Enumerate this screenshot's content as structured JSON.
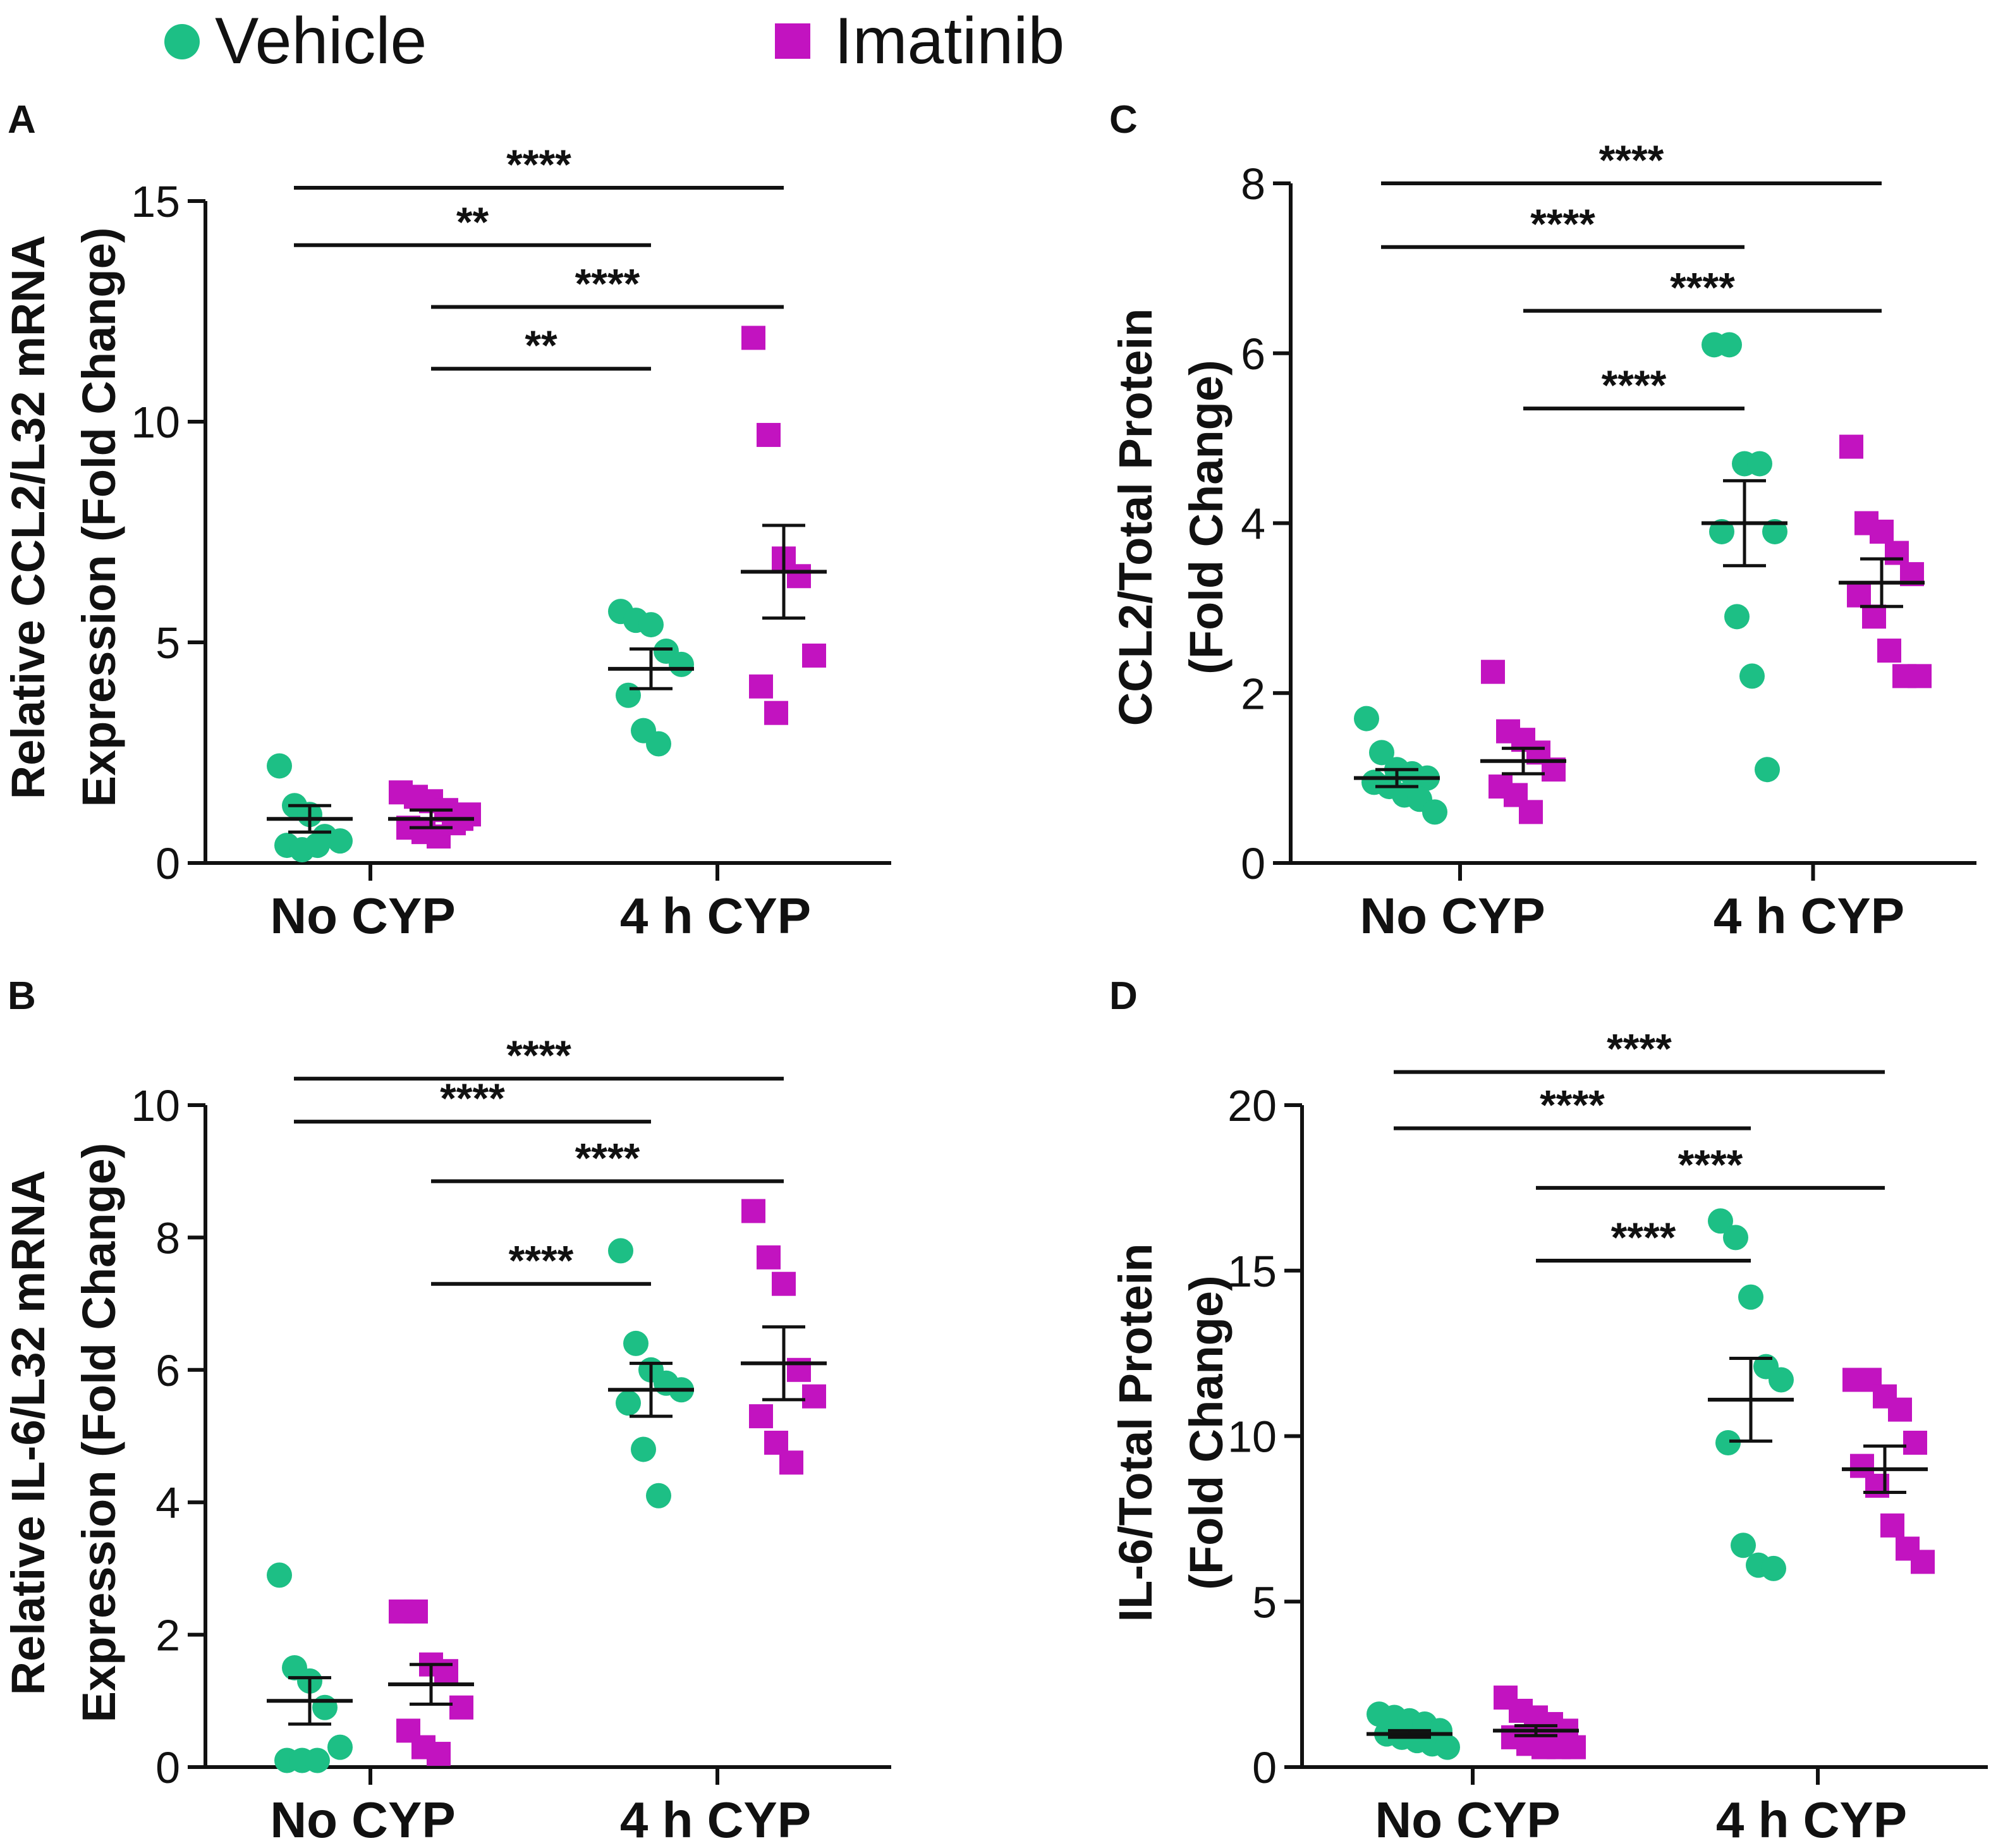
{
  "colors": {
    "vehicle": "#1DBF85",
    "imatinib": "#C213C0",
    "ink": "#111111"
  },
  "legend": [
    {
      "label": "Vehicle",
      "marker": "circle",
      "color": "#1DBF85"
    },
    {
      "label": "Imatinib",
      "marker": "square",
      "color": "#C213C0"
    }
  ],
  "chart_data": [
    {
      "panel": "A",
      "type": "scatter",
      "ylabel_lines": [
        "Relative CCL2/L32 mRNA",
        "Expression (Fold Change)"
      ],
      "ylim": [
        0,
        15
      ],
      "yticks": [
        0,
        5,
        10,
        15
      ],
      "categories": [
        "No CYP",
        "4 h CYP"
      ],
      "series": [
        {
          "name": "Vehicle",
          "group": 0,
          "mean": 1.0,
          "sem": 0.3,
          "values": [
            2.2,
            1.3,
            1.1,
            0.6,
            0.5,
            0.4,
            0.3,
            0.4
          ]
        },
        {
          "name": "Imatinib",
          "group": 0,
          "mean": 1.0,
          "sem": 0.2,
          "values": [
            1.6,
            1.5,
            1.4,
            1.2,
            1.0,
            0.8,
            0.7,
            0.6,
            0.9,
            1.1
          ]
        },
        {
          "name": "Vehicle",
          "group": 1,
          "mean": 4.4,
          "sem": 0.45,
          "values": [
            5.7,
            5.5,
            5.4,
            4.8,
            4.5,
            3.8,
            3.0,
            2.7
          ]
        },
        {
          "name": "Imatinib",
          "group": 1,
          "mean": 6.6,
          "sem": 1.05,
          "values": [
            11.9,
            9.7,
            6.9,
            6.5,
            4.7,
            4.0,
            3.4
          ]
        }
      ],
      "significance": [
        {
          "label": "****",
          "from": 0,
          "to": 3,
          "y": 15.3
        },
        {
          "label": "**",
          "from": 0,
          "to": 2,
          "y": 14.0
        },
        {
          "label": "****",
          "from": 1,
          "to": 3,
          "y": 12.6
        },
        {
          "label": "**",
          "from": 1,
          "to": 2,
          "y": 11.2
        }
      ]
    },
    {
      "panel": "C",
      "type": "scatter",
      "ylabel_lines": [
        "CCL2/Total Protein",
        "(Fold Change)"
      ],
      "ylim": [
        0,
        8
      ],
      "yticks": [
        0,
        2,
        4,
        6,
        8
      ],
      "categories": [
        "No CYP",
        "4 h CYP"
      ],
      "series": [
        {
          "name": "Vehicle",
          "group": 0,
          "mean": 1.0,
          "sem": 0.1,
          "values": [
            1.7,
            1.3,
            1.1,
            1.05,
            1.0,
            0.95,
            0.9,
            0.8,
            0.75,
            0.6
          ]
        },
        {
          "name": "Imatinib",
          "group": 0,
          "mean": 1.2,
          "sem": 0.15,
          "values": [
            2.25,
            1.55,
            1.45,
            1.3,
            1.1,
            0.9,
            0.8,
            0.6
          ]
        },
        {
          "name": "Vehicle",
          "group": 1,
          "mean": 4.0,
          "sem": 0.5,
          "values": [
            6.1,
            6.1,
            4.7,
            4.7,
            3.9,
            3.9,
            2.9,
            2.2,
            1.1
          ]
        },
        {
          "name": "Imatinib",
          "group": 1,
          "mean": 3.3,
          "sem": 0.28,
          "values": [
            4.9,
            4.0,
            3.9,
            3.65,
            3.4,
            3.15,
            2.9,
            2.5,
            2.2,
            2.2
          ]
        }
      ],
      "significance": [
        {
          "label": "****",
          "from": 0,
          "to": 3,
          "y": 8.0
        },
        {
          "label": "****",
          "from": 0,
          "to": 2,
          "y": 7.25
        },
        {
          "label": "****",
          "from": 1,
          "to": 3,
          "y": 6.5
        },
        {
          "label": "****",
          "from": 1,
          "to": 2,
          "y": 5.35
        }
      ]
    },
    {
      "panel": "B",
      "type": "scatter",
      "ylabel_lines": [
        "Relative IL-6/L32 mRNA",
        "Expression (Fold Change)"
      ],
      "ylim": [
        0,
        10
      ],
      "yticks": [
        0,
        2,
        4,
        6,
        8,
        10
      ],
      "categories": [
        "No CYP",
        "4 h CYP"
      ],
      "series": [
        {
          "name": "Vehicle",
          "group": 0,
          "mean": 1.0,
          "sem": 0.35,
          "values": [
            2.9,
            1.5,
            1.3,
            0.9,
            0.3,
            0.1,
            0.1,
            0.1
          ]
        },
        {
          "name": "Imatinib",
          "group": 0,
          "mean": 1.25,
          "sem": 0.3,
          "values": [
            2.35,
            2.35,
            1.55,
            1.45,
            0.9,
            0.55,
            0.3,
            0.2
          ]
        },
        {
          "name": "Vehicle",
          "group": 1,
          "mean": 5.7,
          "sem": 0.4,
          "values": [
            7.8,
            6.4,
            6.0,
            5.8,
            5.7,
            5.5,
            4.8,
            4.1
          ]
        },
        {
          "name": "Imatinib",
          "group": 1,
          "mean": 6.1,
          "sem": 0.55,
          "values": [
            8.4,
            7.7,
            7.3,
            6.0,
            5.6,
            5.3,
            4.9,
            4.6
          ]
        }
      ],
      "significance": [
        {
          "label": "****",
          "from": 0,
          "to": 3,
          "y": 10.4
        },
        {
          "label": "****",
          "from": 0,
          "to": 2,
          "y": 9.75
        },
        {
          "label": "****",
          "from": 1,
          "to": 3,
          "y": 8.85
        },
        {
          "label": "****",
          "from": 1,
          "to": 2,
          "y": 7.3
        }
      ]
    },
    {
      "panel": "D",
      "type": "scatter",
      "ylabel_lines": [
        "IL-6/Total Protein",
        "(Fold Change)"
      ],
      "ylim": [
        0,
        20
      ],
      "yticks": [
        0,
        5,
        10,
        15,
        20
      ],
      "categories": [
        "No CYP",
        "4 h CYP"
      ],
      "series": [
        {
          "name": "Vehicle",
          "group": 0,
          "mean": 1.0,
          "sem": 0.1,
          "values": [
            1.6,
            1.5,
            1.4,
            1.3,
            1.1,
            1.0,
            0.9,
            0.8,
            0.7,
            0.6
          ]
        },
        {
          "name": "Imatinib",
          "group": 0,
          "mean": 1.1,
          "sem": 0.15,
          "values": [
            2.1,
            1.7,
            1.5,
            1.3,
            1.1,
            0.9,
            0.7,
            0.6,
            0.6,
            0.6
          ]
        },
        {
          "name": "Vehicle",
          "group": 1,
          "mean": 11.1,
          "sem": 1.25,
          "values": [
            16.5,
            16.0,
            14.2,
            12.1,
            11.7,
            9.8,
            6.7,
            6.1,
            6.0
          ]
        },
        {
          "name": "Imatinib",
          "group": 1,
          "mean": 9.0,
          "sem": 0.7,
          "values": [
            11.7,
            11.7,
            11.2,
            10.8,
            9.8,
            9.1,
            8.5,
            7.3,
            6.6,
            6.2
          ]
        }
      ],
      "significance": [
        {
          "label": "****",
          "from": 0,
          "to": 3,
          "y": 21.0
        },
        {
          "label": "****",
          "from": 0,
          "to": 2,
          "y": 19.3
        },
        {
          "label": "****",
          "from": 1,
          "to": 3,
          "y": 17.5
        },
        {
          "label": "****",
          "from": 1,
          "to": 2,
          "y": 15.3
        }
      ]
    }
  ]
}
